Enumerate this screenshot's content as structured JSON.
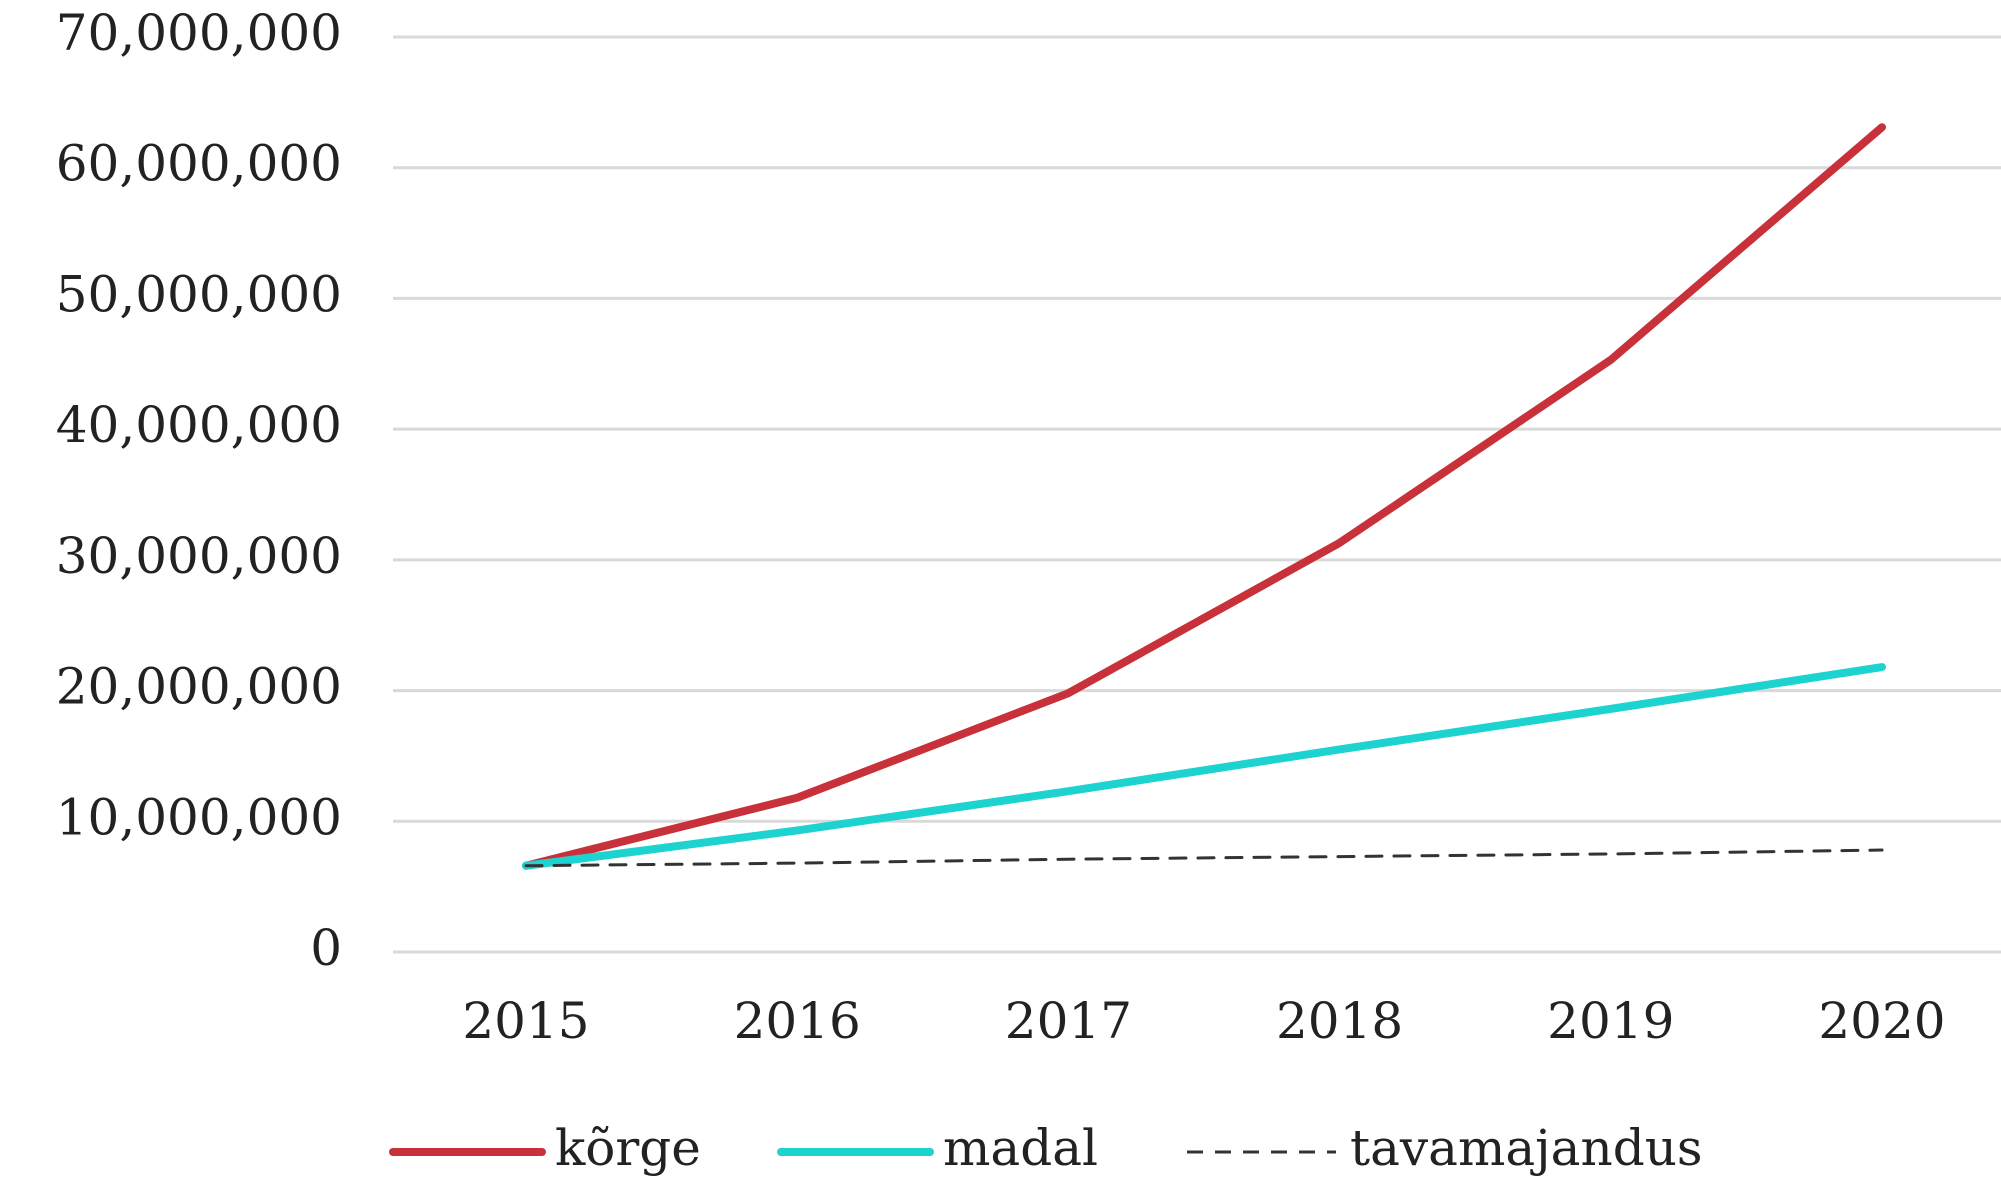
{
  "chart_data": {
    "type": "line",
    "categories": [
      "2015",
      "2016",
      "2017",
      "2018",
      "2019",
      "2020"
    ],
    "series": [
      {
        "name": "kõrge",
        "color": "#c8303a",
        "dash": false,
        "values": [
          6600000,
          11800000,
          19800000,
          31300000,
          45300000,
          63100000
        ]
      },
      {
        "name": "madal",
        "color": "#1dd3cf",
        "dash": false,
        "values": [
          6600000,
          9300000,
          12300000,
          15500000,
          18600000,
          21800000
        ]
      },
      {
        "name": "tavamajandus",
        "color": "#333333",
        "dash": true,
        "values": [
          6600000,
          6800000,
          7100000,
          7300000,
          7500000,
          7800000
        ]
      }
    ],
    "ylim": [
      0,
      70000000
    ],
    "yticks": [
      0,
      {
        "value": 10000000,
        "label": "10,000,000"
      },
      {
        "value": 20000000,
        "label": "20,000,000"
      },
      {
        "value": 30000000,
        "label": "30,000,000"
      },
      {
        "value": 40000000,
        "label": "40,000,000"
      },
      {
        "value": 50000000,
        "label": "50,000,000"
      },
      {
        "value": 60000000,
        "label": "60,000,000"
      },
      {
        "value": 70000000,
        "label": "70,000,000"
      }
    ],
    "grid": true,
    "legend": "bottom"
  }
}
